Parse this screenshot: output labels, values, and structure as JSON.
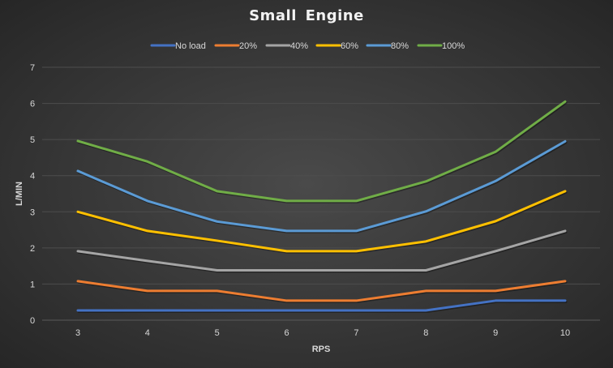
{
  "chart_data": {
    "type": "line",
    "title": "Small Engine",
    "xlabel": "RPS",
    "ylabel": "L/MIN",
    "x": [
      3,
      4,
      5,
      6,
      7,
      8,
      9,
      10
    ],
    "x_tick_labels": [
      "3",
      "4",
      "5",
      "6",
      "7",
      "8",
      "9",
      "10"
    ],
    "ylim": [
      0,
      7
    ],
    "y_tick_labels": [
      "0",
      "1",
      "2",
      "3",
      "4",
      "5",
      "6",
      "7"
    ],
    "grid": true,
    "legend_position": "top",
    "series": [
      {
        "name": "No load",
        "color": "#4472c4",
        "values": [
          0.27,
          0.27,
          0.27,
          0.27,
          0.27,
          0.27,
          0.54,
          0.54
        ]
      },
      {
        "name": "20%",
        "color": "#ed7d31",
        "values": [
          1.08,
          0.81,
          0.81,
          0.54,
          0.54,
          0.81,
          0.81,
          1.08
        ]
      },
      {
        "name": "40%",
        "color": "#a5a5a5",
        "values": [
          1.91,
          1.64,
          1.38,
          1.38,
          1.38,
          1.38,
          1.91,
          2.47
        ]
      },
      {
        "name": "60%",
        "color": "#ffc000",
        "values": [
          3.0,
          2.47,
          2.2,
          1.91,
          1.91,
          2.18,
          2.74,
          3.57
        ]
      },
      {
        "name": "80%",
        "color": "#5b9bd5",
        "values": [
          4.13,
          3.3,
          2.73,
          2.47,
          2.47,
          3.01,
          3.85,
          4.95
        ]
      },
      {
        "name": "100%",
        "color": "#70ad47",
        "values": [
          4.96,
          4.39,
          3.57,
          3.3,
          3.3,
          3.84,
          4.66,
          6.05
        ]
      }
    ]
  }
}
